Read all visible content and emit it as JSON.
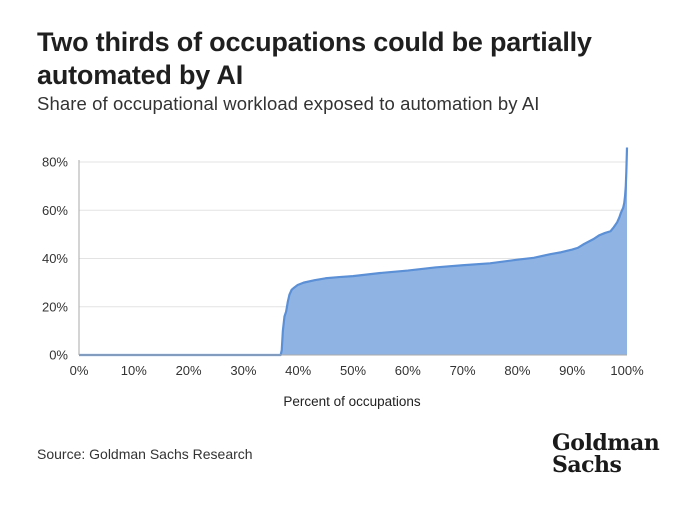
{
  "title": "Two thirds of occupations could be partially automated by AI",
  "subtitle": "Share of occupational workload exposed to automation by AI",
  "source": "Source: Goldman Sachs Research",
  "logo": "Goldman Sachs",
  "colors": {
    "fill": "#8fb4e3",
    "line": "#5b8fd6",
    "grid": "#e3e3e3",
    "axis": "#aaaaaa"
  },
  "chart_data": {
    "type": "area",
    "title": "",
    "xlabel": "Percent of occupations",
    "ylabel": "",
    "xlim": [
      0,
      100
    ],
    "ylim": [
      0,
      80
    ],
    "grid": true,
    "legend": "none",
    "x_ticks": [
      "0%",
      "10%",
      "20%",
      "30%",
      "40%",
      "50%",
      "60%",
      "70%",
      "80%",
      "90%",
      "100%"
    ],
    "y_ticks": [
      "0%",
      "20%",
      "40%",
      "60%",
      "80%"
    ],
    "y_tick_values": [
      0,
      20,
      40,
      60,
      80
    ],
    "series": [
      {
        "x": [
          0,
          36.8,
          37.0,
          37.2,
          37.5,
          37.8,
          38.1,
          38.4,
          38.8,
          39.3,
          39.9,
          41.0,
          43.0,
          45.0,
          47.5,
          50.0,
          55.0,
          60.0,
          65.0,
          70.0,
          75.0,
          80.0,
          83.0,
          86.0,
          88.0,
          90.0,
          91.0,
          92.0,
          93.0,
          94.0,
          95.0,
          96.0,
          97.0,
          97.6,
          98.2,
          98.6,
          98.9,
          99.1,
          99.3,
          99.5,
          99.65,
          99.78,
          99.88,
          100
        ],
        "y": [
          0,
          0,
          2,
          10,
          16,
          18,
          22,
          25,
          27,
          28,
          29,
          30,
          31,
          31.8,
          32.3,
          32.7,
          34,
          35,
          36.3,
          37.2,
          38,
          39.5,
          40.3,
          41.8,
          42.6,
          43.7,
          44.4,
          45.8,
          47,
          48.2,
          49.7,
          50.6,
          51.3,
          53,
          55,
          57,
          59,
          60,
          61,
          63,
          66,
          70,
          76,
          86
        ]
      }
    ]
  }
}
